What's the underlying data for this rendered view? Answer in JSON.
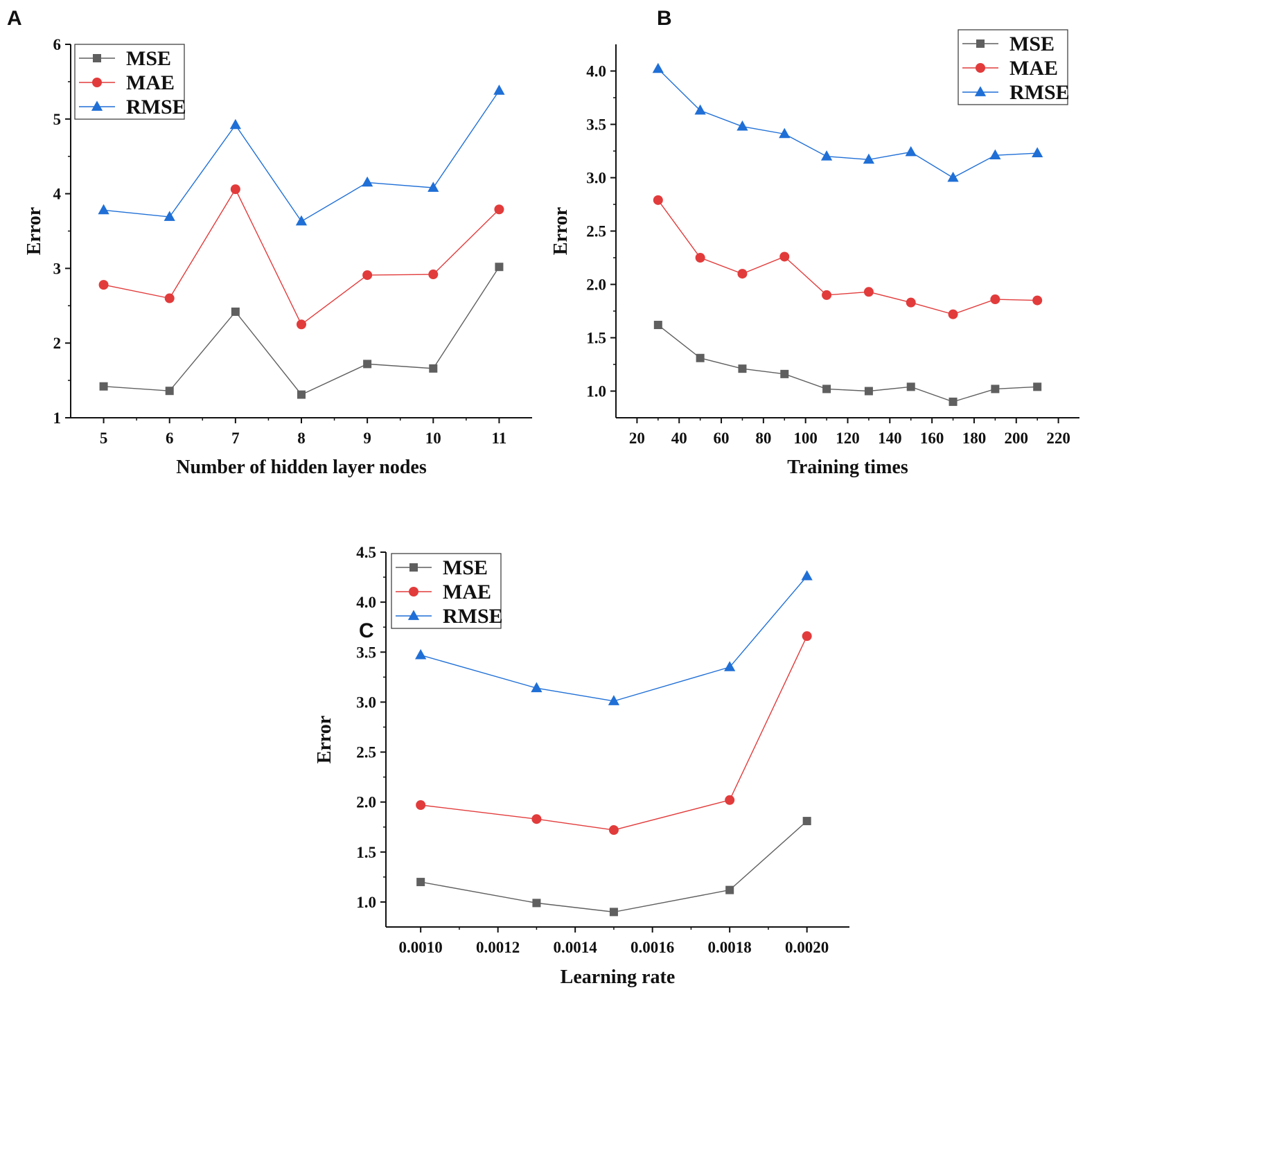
{
  "figure": {
    "panels": [
      "A",
      "B",
      "C"
    ]
  },
  "colors": {
    "MSE": "#5f5f5f",
    "MAE": "#e23b3b",
    "RMSE": "#1f6fd6",
    "axis": "#111111"
  },
  "chart_data": [
    {
      "panel": "A",
      "type": "line",
      "title": "",
      "xlabel": "Number of hidden layer nodes",
      "ylabel": "Error",
      "x": [
        5,
        6,
        7,
        8,
        9,
        10,
        11
      ],
      "xlim": [
        4.5,
        11.5
      ],
      "ylim": [
        1,
        6
      ],
      "xticks": [
        5,
        6,
        7,
        8,
        9,
        10,
        11
      ],
      "xtick_labels": [
        "5",
        "6",
        "7",
        "8",
        "9",
        "10",
        "11"
      ],
      "yticks": [
        1,
        2,
        3,
        4,
        5,
        6
      ],
      "ytick_labels": [
        "1",
        "2",
        "3",
        "4",
        "5",
        "6"
      ],
      "legend_position": "top-left",
      "series": [
        {
          "name": "MSE",
          "marker": "square",
          "values": [
            1.42,
            1.36,
            2.42,
            1.31,
            1.72,
            1.66,
            3.02
          ]
        },
        {
          "name": "MAE",
          "marker": "circle",
          "values": [
            2.78,
            2.6,
            4.06,
            2.25,
            2.91,
            2.92,
            3.79
          ]
        },
        {
          "name": "RMSE",
          "marker": "triangle",
          "values": [
            3.78,
            3.69,
            4.92,
            3.63,
            4.15,
            4.08,
            5.38
          ]
        }
      ]
    },
    {
      "panel": "B",
      "type": "line",
      "title": "",
      "xlabel": "Training times",
      "ylabel": "Error",
      "x": [
        30,
        50,
        70,
        90,
        110,
        130,
        150,
        170,
        190,
        210
      ],
      "xlim": [
        10,
        230
      ],
      "ylim": [
        0.75,
        4.25
      ],
      "xticks": [
        20,
        40,
        60,
        80,
        100,
        120,
        140,
        160,
        180,
        200,
        220
      ],
      "xtick_labels": [
        "20",
        "40",
        "60",
        "80",
        "100",
        "120",
        "140",
        "160",
        "180",
        "200",
        "220"
      ],
      "yticks": [
        1.0,
        1.5,
        2.0,
        2.5,
        3.0,
        3.5,
        4.0
      ],
      "ytick_labels": [
        "1.0",
        "1.5",
        "2.0",
        "2.5",
        "3.0",
        "3.5",
        "4.0"
      ],
      "legend_position": "top-right",
      "series": [
        {
          "name": "MSE",
          "marker": "square",
          "values": [
            1.62,
            1.31,
            1.21,
            1.16,
            1.02,
            1.0,
            1.04,
            0.9,
            1.02,
            1.04
          ]
        },
        {
          "name": "MAE",
          "marker": "circle",
          "values": [
            2.79,
            2.25,
            2.1,
            2.26,
            1.9,
            1.93,
            1.83,
            1.72,
            1.86,
            1.85
          ]
        },
        {
          "name": "RMSE",
          "marker": "triangle",
          "values": [
            4.02,
            3.63,
            3.48,
            3.41,
            3.2,
            3.17,
            3.24,
            3.0,
            3.21,
            3.23
          ]
        }
      ]
    },
    {
      "panel": "C",
      "type": "line",
      "title": "",
      "xlabel": "Learning rate",
      "ylabel": "Error",
      "x": [
        0.001,
        0.0013,
        0.0015,
        0.0018,
        0.002
      ],
      "xlim": [
        0.00091,
        0.00211
      ],
      "ylim": [
        0.75,
        4.5
      ],
      "xticks": [
        0.001,
        0.0012,
        0.0014,
        0.0016,
        0.0018,
        0.002
      ],
      "xtick_labels": [
        "0.0010",
        "0.0012",
        "0.0014",
        "0.0016",
        "0.0018",
        "0.0020"
      ],
      "yticks": [
        1.0,
        1.5,
        2.0,
        2.5,
        3.0,
        3.5,
        4.0,
        4.5
      ],
      "ytick_labels": [
        "1.0",
        "1.5",
        "2.0",
        "2.5",
        "3.0",
        "3.5",
        "4.0",
        "4.5"
      ],
      "legend_position": "top-left",
      "series": [
        {
          "name": "MSE",
          "marker": "square",
          "values": [
            1.2,
            0.99,
            0.9,
            1.12,
            1.81
          ]
        },
        {
          "name": "MAE",
          "marker": "circle",
          "values": [
            1.97,
            1.83,
            1.72,
            2.02,
            3.66
          ]
        },
        {
          "name": "RMSE",
          "marker": "triangle",
          "values": [
            3.47,
            3.14,
            3.01,
            3.35,
            4.26
          ]
        }
      ]
    }
  ]
}
